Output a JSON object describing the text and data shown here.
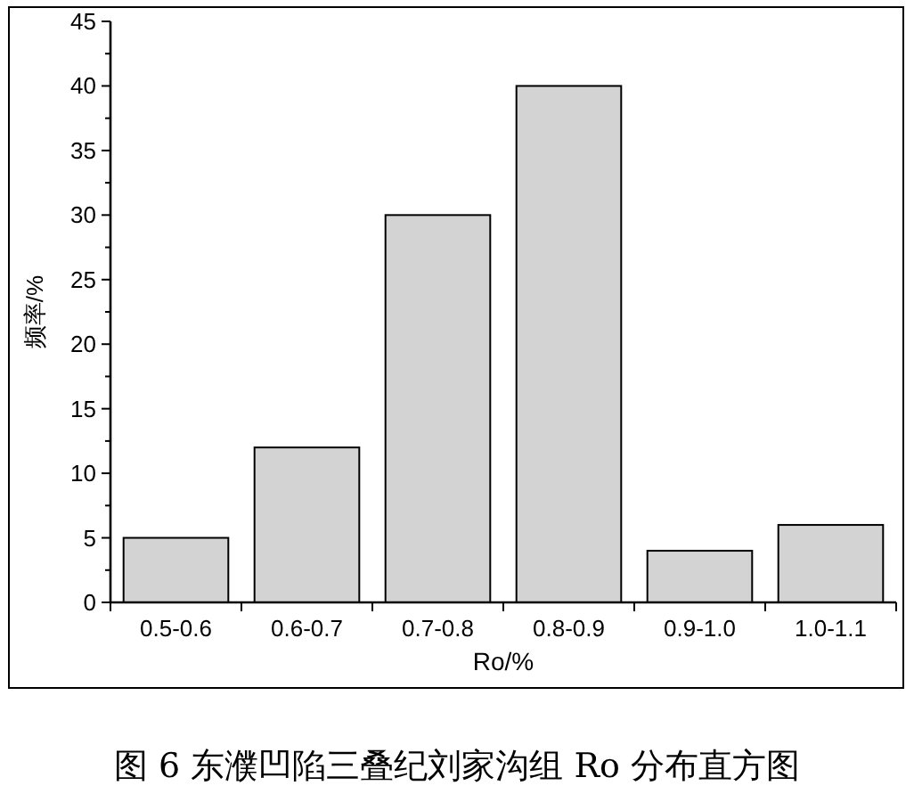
{
  "chart_data": {
    "type": "bar",
    "title": "图 6 东濮凹陷三叠纪刘家沟组 Ro 分布直方图",
    "xlabel": "Ro/%",
    "ylabel": "频率/%",
    "categories": [
      "0.5-0.6",
      "0.6-0.7",
      "0.7-0.8",
      "0.8-0.9",
      "0.9-1.0",
      "1.0-1.1"
    ],
    "values": [
      5,
      12,
      30,
      40,
      4,
      6
    ],
    "color": "#d3d3d3",
    "ylim": [
      0,
      45
    ],
    "yticks": [
      0,
      5,
      10,
      15,
      20,
      25,
      30,
      35,
      40,
      45
    ],
    "grid": false
  }
}
